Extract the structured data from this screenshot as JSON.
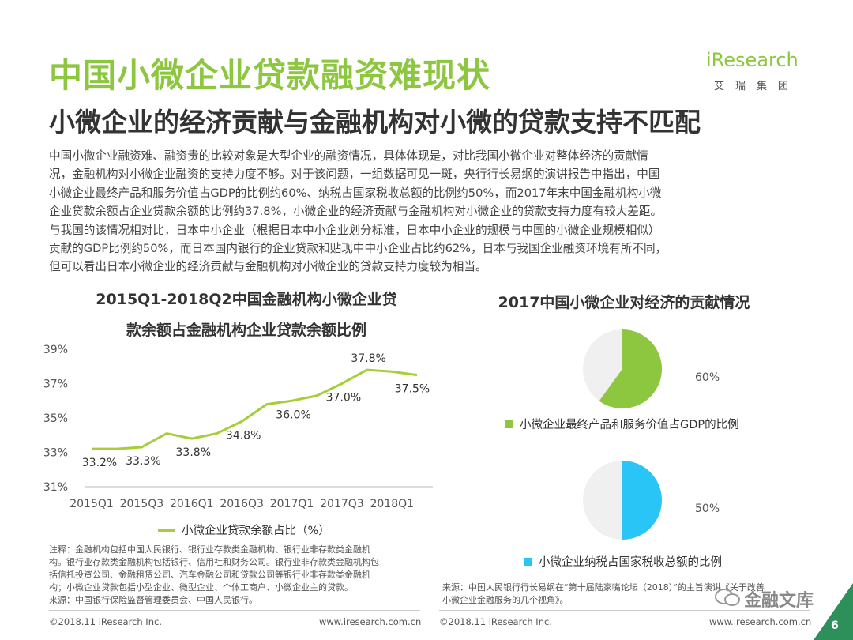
{
  "header": {
    "title": "中国小微企业贷款融资难现状",
    "subtitle": "小微企业的经济贡献与金融机构对小微的贷款支持不匹配"
  },
  "logo": {
    "main": "iResearch",
    "sub": "艾瑞集团"
  },
  "body_lines": [
    "中国小微企业融资难、融资贵的比较对象是大型企业的融资情况，具体体现是，对比我国小微企业对整体经济的贡献情",
    "况，金融机构对小微企业融资的支持力度不够。对于该问题，一组数据可见一斑，央行行长易纲的演讲报告中指出，中国",
    "小微企业最终产品和服务价值占GDP的比例约60%、纳税占国家税收总额的比例约50%，而2017年末中国金融机构小微",
    "企业贷款余额占企业贷款余额的比例约37.8%，小微企业的经济贡献与金融机构对小微企业的贷款支持力度有较大差距。",
    "与我国的该情况相对比，日本中小企业（根据日本中小企业划分标准，日本中小企业的规模与中国的小微企业规模相似）",
    "贡献的GDP比例约50%，而日本国内银行的企业贷款和贴现中中小企业占比约62%，日本与我国企业融资环境有所不同，",
    "但可以看出日本小微企业的经济贡献与金融机构对小微企业的贷款支持力度较为相当。"
  ],
  "chart_data": [
    {
      "type": "line",
      "title": "2015Q1-2018Q2中国金融机构小微企业贷款余额占金融机构企业贷款余额比例",
      "title_lines": [
        "2015Q1-2018Q2中国金融机构小微企业贷",
        "款余额占金融机构企业贷款余额比例"
      ],
      "x": [
        "2015Q1",
        "2015Q2",
        "2015Q3",
        "2015Q4",
        "2016Q1",
        "2016Q2",
        "2016Q3",
        "2016Q4",
        "2017Q1",
        "2017Q2",
        "2017Q3",
        "2017Q4",
        "2018Q1",
        "2018Q2"
      ],
      "x_tick_labels": [
        "2015Q1",
        "2015Q3",
        "2016Q1",
        "2016Q3",
        "2017Q1",
        "2017Q3",
        "2018Q1"
      ],
      "x_tick_indices": [
        0,
        2,
        4,
        6,
        8,
        10,
        12
      ],
      "series": [
        {
          "name": "小微企业贷款余额占比（%）",
          "values": [
            33.2,
            33.2,
            33.3,
            34.1,
            33.8,
            34.1,
            34.8,
            35.8,
            36.0,
            36.3,
            37.0,
            37.8,
            37.7,
            37.5
          ]
        }
      ],
      "data_labels": [
        {
          "index": 0,
          "text": "33.2%"
        },
        {
          "index": 2,
          "text": "33.3%"
        },
        {
          "index": 4,
          "text": "33.8%"
        },
        {
          "index": 6,
          "text": "34.8%"
        },
        {
          "index": 8,
          "text": "36.0%"
        },
        {
          "index": 10,
          "text": "37.0%"
        },
        {
          "index": 11,
          "text": "37.8%"
        },
        {
          "index": 13,
          "text": "37.5%"
        }
      ],
      "y_tick_labels": [
        "39%",
        "37%",
        "35%",
        "33%",
        "31%"
      ],
      "y_ticks": [
        39,
        37,
        35,
        33,
        31
      ],
      "ylim": [
        31,
        39
      ],
      "legend": "bottom",
      "color": "#a6ce39"
    },
    {
      "type": "pie",
      "title": "2017中国小微企业对经济的贡献情况",
      "charts": [
        {
          "value": 60,
          "label": "60%",
          "legend": "小微企业最终产品和服务价值占GDP的比例",
          "color": "#8dc63f",
          "rest_color": "#f0f0f0"
        },
        {
          "value": 50,
          "label": "50%",
          "legend": "小微企业纳税占国家税收总额的比例",
          "color": "#29c5f6",
          "rest_color": "#f0f0f0"
        }
      ]
    }
  ],
  "notes": {
    "left": [
      "注释：金融机构包括中国人民银行、银行业存款类金融机构、银行业非存款类金融机",
      "构。银行业存款类金融机构包括银行、信用社和财务公司。银行业非存款类金融机构包",
      "括信托投资公司、金融租赁公司、汽车金融公司和贷款公司等银行业非存款类金融机",
      "构；小微企业贷款包括小型企业、微型企业、个体工商户、小微企业主的贷款。",
      "来源：中国银行保险监督管理委员会、中国人民银行。"
    ],
    "right": [
      "来源：中国人民银行行长易纲在“第十届陆家嘴论坛（2018）”的主旨演讲《关于改善",
      "小微企业金融服务的几个视角》。"
    ]
  },
  "footer": {
    "left_copyright": "©2018.11 iResearch Inc.",
    "left_url": "www.iresearch.com.cn",
    "right_copyright": "©2018.11 iResearch Inc.",
    "right_url": "www.iresearch.com.cn",
    "watermark": "金融文库",
    "page_number": "6"
  }
}
